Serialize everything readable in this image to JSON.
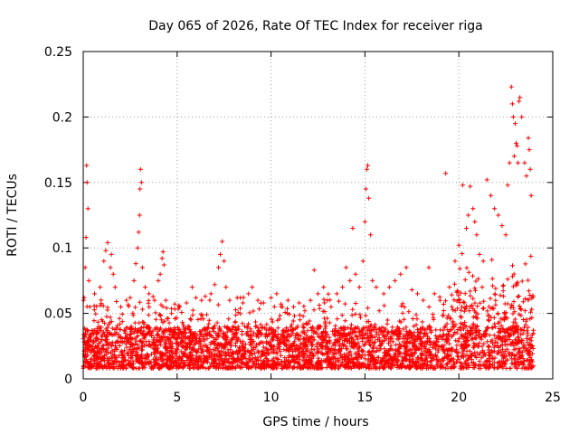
{
  "chart_data": {
    "type": "scatter",
    "title": "Day 065 of 2026, Rate Of TEC Index for receiver riga",
    "xlabel": "GPS time / hours",
    "ylabel": "ROTI / TECUs",
    "xlim": [
      0,
      25
    ],
    "ylim": [
      0,
      0.25
    ],
    "xticks": [
      0,
      5,
      10,
      15,
      20,
      25
    ],
    "xtick_labels": [
      "0",
      "5",
      "10",
      "15",
      "20",
      "25"
    ],
    "yticks": [
      0,
      0.05,
      0.1,
      0.15,
      0.2,
      0.25
    ],
    "ytick_labels": [
      "0",
      "0.05",
      "0.1",
      "0.15",
      "0.2",
      "0.25"
    ],
    "grid": true,
    "marker": "+",
    "color": "#ff0000",
    "series": [
      {
        "name": "",
        "points": [
          [
            0.05,
            0.062
          ],
          [
            0.1,
            0.085
          ],
          [
            0.15,
            0.108
          ],
          [
            0.18,
            0.163
          ],
          [
            0.2,
            0.15
          ],
          [
            0.25,
            0.13
          ],
          [
            0.3,
            0.075
          ],
          [
            0.35,
            0.055
          ],
          [
            0.6,
            0.065
          ],
          [
            0.9,
            0.07
          ],
          [
            1.1,
            0.09
          ],
          [
            1.2,
            0.098
          ],
          [
            1.3,
            0.104
          ],
          [
            1.45,
            0.085
          ],
          [
            1.5,
            0.095
          ],
          [
            1.6,
            0.08
          ],
          [
            1.7,
            0.07
          ],
          [
            2.0,
            0.055
          ],
          [
            2.3,
            0.06
          ],
          [
            2.5,
            0.062
          ],
          [
            2.7,
            0.075
          ],
          [
            2.8,
            0.088
          ],
          [
            2.9,
            0.1
          ],
          [
            2.95,
            0.112
          ],
          [
            3.0,
            0.125
          ],
          [
            3.02,
            0.145
          ],
          [
            3.05,
            0.16
          ],
          [
            3.1,
            0.15
          ],
          [
            3.15,
            0.085
          ],
          [
            3.3,
            0.07
          ],
          [
            3.5,
            0.065
          ],
          [
            3.8,
            0.06
          ],
          [
            4.0,
            0.075
          ],
          [
            4.1,
            0.08
          ],
          [
            4.2,
            0.092
          ],
          [
            4.25,
            0.097
          ],
          [
            4.3,
            0.087
          ],
          [
            4.4,
            0.06
          ],
          [
            4.7,
            0.05
          ],
          [
            5.1,
            0.055
          ],
          [
            5.5,
            0.058
          ],
          [
            5.8,
            0.07
          ],
          [
            6.0,
            0.062
          ],
          [
            6.3,
            0.06
          ],
          [
            6.5,
            0.063
          ],
          [
            6.8,
            0.065
          ],
          [
            7.0,
            0.072
          ],
          [
            7.2,
            0.085
          ],
          [
            7.3,
            0.095
          ],
          [
            7.4,
            0.105
          ],
          [
            7.5,
            0.09
          ],
          [
            7.6,
            0.07
          ],
          [
            7.8,
            0.06
          ],
          [
            8.2,
            0.062
          ],
          [
            8.5,
            0.058
          ],
          [
            8.8,
            0.065
          ],
          [
            9.0,
            0.07
          ],
          [
            9.3,
            0.06
          ],
          [
            9.6,
            0.058
          ],
          [
            10.0,
            0.062
          ],
          [
            10.3,
            0.065
          ],
          [
            10.6,
            0.055
          ],
          [
            10.9,
            0.06
          ],
          [
            11.2,
            0.055
          ],
          [
            11.5,
            0.058
          ],
          [
            11.8,
            0.052
          ],
          [
            12.1,
            0.06
          ],
          [
            12.3,
            0.083
          ],
          [
            12.5,
            0.065
          ],
          [
            12.8,
            0.07
          ],
          [
            13.0,
            0.06
          ],
          [
            13.2,
            0.055
          ],
          [
            13.5,
            0.065
          ],
          [
            13.8,
            0.07
          ],
          [
            14.0,
            0.085
          ],
          [
            14.2,
            0.075
          ],
          [
            14.35,
            0.115
          ],
          [
            14.5,
            0.08
          ],
          [
            14.7,
            0.07
          ],
          [
            14.9,
            0.09
          ],
          [
            15.0,
            0.12
          ],
          [
            15.05,
            0.145
          ],
          [
            15.1,
            0.16
          ],
          [
            15.15,
            0.163
          ],
          [
            15.2,
            0.138
          ],
          [
            15.3,
            0.11
          ],
          [
            15.4,
            0.075
          ],
          [
            15.6,
            0.07
          ],
          [
            16.0,
            0.065
          ],
          [
            16.3,
            0.07
          ],
          [
            16.6,
            0.075
          ],
          [
            16.9,
            0.08
          ],
          [
            17.2,
            0.085
          ],
          [
            17.5,
            0.068
          ],
          [
            17.8,
            0.065
          ],
          [
            18.1,
            0.06
          ],
          [
            18.4,
            0.085
          ],
          [
            18.7,
            0.065
          ],
          [
            19.0,
            0.06
          ],
          [
            19.3,
            0.157
          ],
          [
            19.5,
            0.07
          ],
          [
            19.8,
            0.09
          ],
          [
            20.0,
            0.102
          ],
          [
            20.2,
            0.148
          ],
          [
            20.4,
            0.115
          ],
          [
            20.5,
            0.125
          ],
          [
            20.6,
            0.147
          ],
          [
            20.75,
            0.13
          ],
          [
            20.85,
            0.12
          ],
          [
            20.95,
            0.11
          ],
          [
            21.1,
            0.095
          ],
          [
            21.3,
            0.09
          ],
          [
            21.5,
            0.152
          ],
          [
            21.7,
            0.14
          ],
          [
            21.9,
            0.13
          ],
          [
            22.1,
            0.125
          ],
          [
            22.3,
            0.117
          ],
          [
            22.5,
            0.11
          ],
          [
            22.6,
            0.148
          ],
          [
            22.7,
            0.165
          ],
          [
            22.8,
            0.223
          ],
          [
            22.85,
            0.21
          ],
          [
            22.9,
            0.2
          ],
          [
            22.95,
            0.17
          ],
          [
            23.0,
            0.195
          ],
          [
            23.05,
            0.18
          ],
          [
            23.1,
            0.178
          ],
          [
            23.15,
            0.165
          ],
          [
            23.2,
            0.212
          ],
          [
            23.25,
            0.215
          ],
          [
            23.35,
            0.2
          ],
          [
            23.5,
            0.165
          ],
          [
            23.6,
            0.155
          ],
          [
            23.7,
            0.184
          ],
          [
            23.75,
            0.175
          ],
          [
            23.8,
            0.16
          ],
          [
            23.85,
            0.14
          ]
        ]
      }
    ]
  }
}
